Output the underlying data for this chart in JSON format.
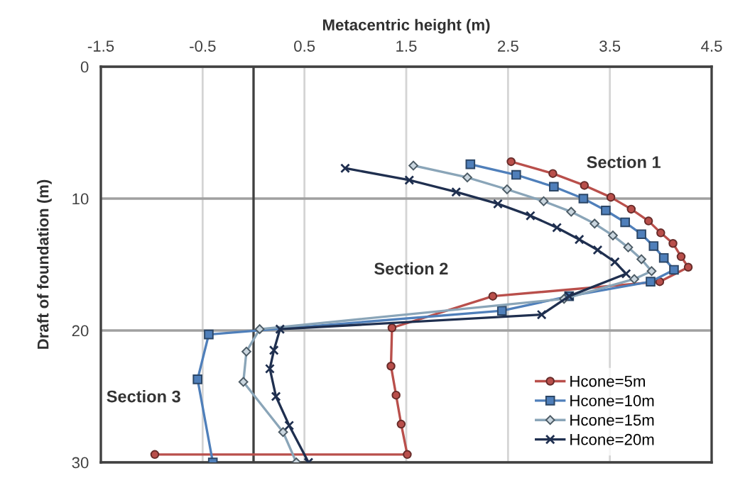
{
  "chart_data": {
    "type": "line",
    "xlabel": "Metacentric height (m)",
    "ylabel": "Draft of foundation (m)",
    "xlim": [
      -1.5,
      4.5
    ],
    "xticks": [
      -1.5,
      -0.5,
      0.5,
      1.5,
      2.5,
      3.5,
      4.5
    ],
    "ylim": [
      30,
      0
    ],
    "yticks": [
      0,
      10,
      20,
      30
    ],
    "grid": true,
    "legend": "bottom right",
    "ref_lines": [
      {
        "axis": "x",
        "value": 0,
        "color": "#404040"
      }
    ],
    "annotations": [
      "Section 1",
      "Section 2",
      "Section 3"
    ],
    "series": [
      {
        "name": "Hcone=5m",
        "color": "#b94f4b",
        "marker": "circle",
        "x": [
          2.53,
          2.94,
          3.25,
          3.51,
          3.71,
          3.88,
          4.0,
          4.12,
          4.2,
          4.27,
          3.99,
          2.35,
          1.36,
          1.35,
          1.4,
          1.45,
          1.51,
          -0.97
        ],
        "values": [
          7.2,
          8.1,
          9.0,
          9.9,
          10.8,
          11.7,
          12.6,
          13.4,
          14.4,
          15.2,
          16.3,
          17.4,
          19.8,
          22.7,
          24.9,
          27.1,
          29.4,
          29.4
        ]
      },
      {
        "name": "Hcone=10m",
        "color": "#4f7fba",
        "marker": "square",
        "x": [
          2.13,
          2.58,
          2.95,
          3.24,
          3.46,
          3.65,
          3.81,
          3.93,
          4.03,
          4.13,
          3.9,
          3.1,
          2.44,
          -0.44,
          -0.55,
          -0.4
        ],
        "values": [
          7.4,
          8.2,
          9.1,
          10.0,
          10.9,
          11.8,
          12.7,
          13.6,
          14.5,
          15.4,
          16.3,
          17.4,
          18.5,
          20.3,
          23.7,
          30.0
        ]
      },
      {
        "name": "Hcone=15m",
        "color": "#8aa5b8",
        "marker": "diamond",
        "x": [
          1.57,
          2.1,
          2.49,
          2.85,
          3.12,
          3.35,
          3.53,
          3.68,
          3.81,
          3.91,
          3.74,
          3.05,
          0.06,
          -0.07,
          -0.1,
          0.29,
          0.42
        ],
        "values": [
          7.5,
          8.4,
          9.3,
          10.2,
          11.0,
          11.9,
          12.8,
          13.7,
          14.6,
          15.5,
          16.1,
          17.6,
          19.9,
          21.6,
          23.9,
          27.7,
          30.0
        ]
      },
      {
        "name": "Hcone=20m",
        "color": "#1f2f4f",
        "marker": "cross",
        "x": [
          0.9,
          1.53,
          1.99,
          2.4,
          2.72,
          2.98,
          3.2,
          3.38,
          3.55,
          3.66,
          3.1,
          2.83,
          0.26,
          0.2,
          0.16,
          0.22,
          0.35,
          0.54
        ],
        "values": [
          7.7,
          8.6,
          9.5,
          10.4,
          11.3,
          12.2,
          13.1,
          13.9,
          14.8,
          15.7,
          17.4,
          18.8,
          19.9,
          21.5,
          22.9,
          25.0,
          27.2,
          30.0
        ]
      }
    ]
  }
}
